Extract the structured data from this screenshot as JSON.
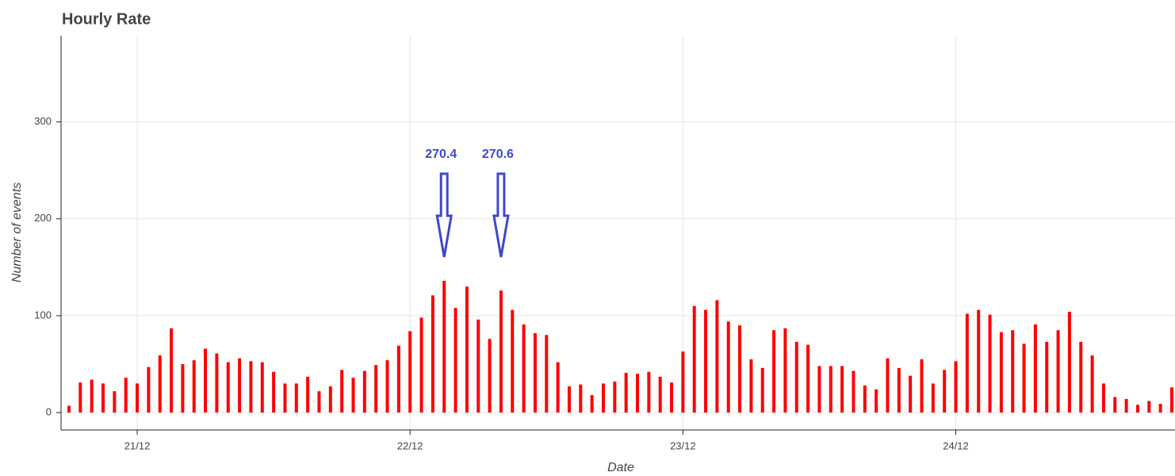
{
  "chart_data": {
    "type": "bar",
    "title": "Hourly Rate",
    "x_label": "Date",
    "y_label": "Number of events",
    "categories": [
      null,
      null,
      null,
      null,
      null,
      null,
      "21/12",
      null,
      null,
      null,
      null,
      null,
      null,
      null,
      null,
      null,
      null,
      null,
      null,
      null,
      null,
      null,
      null,
      null,
      null,
      null,
      null,
      null,
      null,
      null,
      "22/12",
      null,
      null,
      null,
      null,
      null,
      null,
      null,
      null,
      null,
      null,
      null,
      null,
      null,
      null,
      null,
      null,
      null,
      null,
      null,
      null,
      null,
      null,
      null,
      "23/12",
      null,
      null,
      null,
      null,
      null,
      null,
      null,
      null,
      null,
      null,
      null,
      null,
      null,
      null,
      null,
      null,
      null,
      null,
      null,
      null,
      null,
      null,
      null,
      "24/12",
      null,
      null,
      null,
      null,
      null,
      null,
      null,
      null,
      null,
      null,
      null,
      null,
      null,
      null,
      null,
      null,
      null,
      null,
      null
    ],
    "values": [
      7,
      31,
      34,
      30,
      22,
      36,
      30,
      47,
      59,
      87,
      50,
      54,
      66,
      61,
      52,
      56,
      53,
      52,
      42,
      30,
      30,
      37,
      22,
      27,
      44,
      36,
      43,
      49,
      54,
      69,
      84,
      98,
      121,
      136,
      108,
      130,
      96,
      76,
      126,
      106,
      91,
      82,
      80,
      52,
      27,
      29,
      18,
      30,
      32,
      41,
      40,
      42,
      37,
      31,
      63,
      110,
      106,
      116,
      94,
      90,
      55,
      46,
      85,
      87,
      73,
      70,
      48,
      48,
      48,
      43,
      28,
      24,
      56,
      46,
      38,
      55,
      30,
      44,
      53,
      102,
      106,
      101,
      83,
      85,
      71,
      91,
      73,
      85,
      104,
      73,
      59,
      30,
      16,
      14,
      8,
      12,
      9,
      26
    ],
    "color": "#ff0000",
    "ylim": [
      -18,
      389
    ],
    "yticks": [
      0,
      100,
      200,
      300
    ],
    "grid": true,
    "annotations": [
      {
        "text": "270.4",
        "color": "#3f48cc"
      },
      {
        "text": "270.6",
        "color": "#3f48cc"
      }
    ]
  }
}
